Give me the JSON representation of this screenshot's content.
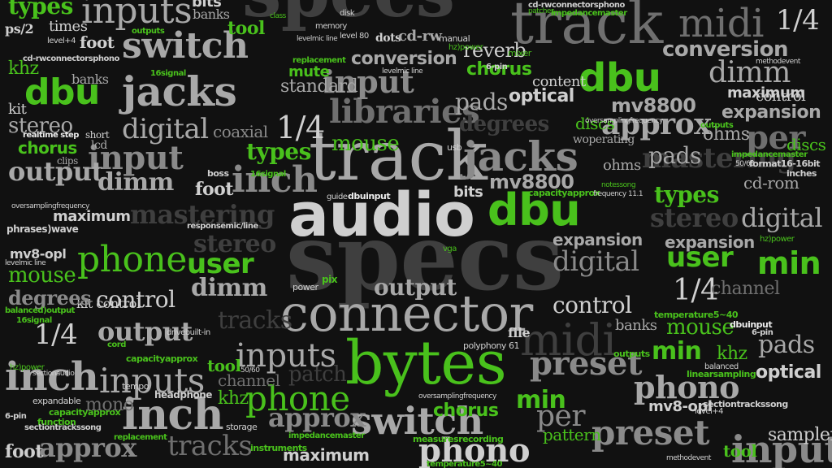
{
  "words": {
    "audio": "audio",
    "specs": "specs",
    "track": "track",
    "connector": "connector",
    "bytes": "bytes",
    "dbu": "dbu",
    "jacks": "jacks",
    "libraries": "libraries",
    "inch": "inch",
    "inputs": "inputs",
    "input": "input",
    "switch": "switch",
    "midi": "midi",
    "phono": "phono",
    "preset": "preset",
    "phone": "phone",
    "user": "user",
    "min": "min",
    "output": "output",
    "digital": "digital",
    "mastering": "mastering",
    "control": "control",
    "mouse": "mouse",
    "types": "types",
    "chorus": "chorus",
    "conversion": "conversion",
    "expansion": "expansion",
    "stereo": "stereo",
    "maximum": "maximum",
    "dimm": "dimm",
    "approx": "approx",
    "mv8800": "mv8800",
    "optical": "optical",
    "pads": "pads",
    "per": "per",
    "quarter": "1/4",
    "tracks": "tracks",
    "foot": "foot",
    "tool": "tool",
    "mute": "mute",
    "khz": "khz",
    "pattern": "pattern",
    "cd_rom": "cd-rom",
    "ohms": "ohms",
    "reverb": "reverb",
    "discs": "discs",
    "bits": "bits",
    "banks": "banks",
    "kit": "kit",
    "lcd": "lcd",
    "degrees": "degrees",
    "mono": "mono",
    "channel": "channel",
    "patch": "patch",
    "standard": "standard",
    "sampler": "sampler",
    "sampling": "sampling",
    "content": "content",
    "dots": "dots",
    "coaxial": "coaxial",
    "realtime_step": "realtime step",
    "clips": "clips",
    "short": "short",
    "recording": "recording",
    "woperating": "woperating",
    "inches": "inches",
    "headphone": "headphone",
    "linearsampling": "linearsampling",
    "mixer": "mixer",
    "power": "power",
    "boss": "boss",
    "manual": "manual",
    "memory": "memory",
    "phrases_wave": "phrases)wave",
    "expandable": "expandable",
    "function": "function",
    "tempo": "tempo",
    "measuresrecording": "measuresrecording",
    "instruments": "instruments",
    "storage": "storage",
    "format16_16bit": "format16-16bit",
    "ps2": "ps/2",
    "level80": "level 80",
    "cd_rw": "cd-rw",
    "usb": "usb",
    "pix": "pix",
    "vga": "vga",
    "file": "file",
    "cord": "cord",
    "class": "class",
    "guide": "guide",
    "disk": "disk",
    "mv8_opl": "mv8-opl",
    "dbuinput": "dbuinput",
    "capacityapprox": "capacityapprox",
    "sixteen_signal": "16signal",
    "balanced_output": "balanced)output",
    "sectiontrackssong": "sectiontrackssong",
    "cd_rwconnectorsphono": "cd-rwconnectorsphono",
    "level_4": "level+4",
    "hz_power": "hz)power",
    "replacement": "replacement",
    "temperature": "temperature5~40",
    "impedancemaster": "impedancemaster",
    "patches": "patches",
    "polyphony": "polyphony 61",
    "sectionaudio": "sectionaudio",
    "outputs": "outputs",
    "frequency": "frequency 11.1",
    "methodevent": "methodevent",
    "notessong": "notessong",
    "levelmic_line": "levelmic line",
    "responsemic_line": "responsemic/line",
    "drivebuilt_in": "drivebuilt-in",
    "six_pin": "6-pin",
    "fifty_sixty": "50/60",
    "oversamplingfrequency": "oversamplingfrequency",
    "times": "times",
    "kit_control": "kit control",
    "balanced": "balanced"
  }
}
